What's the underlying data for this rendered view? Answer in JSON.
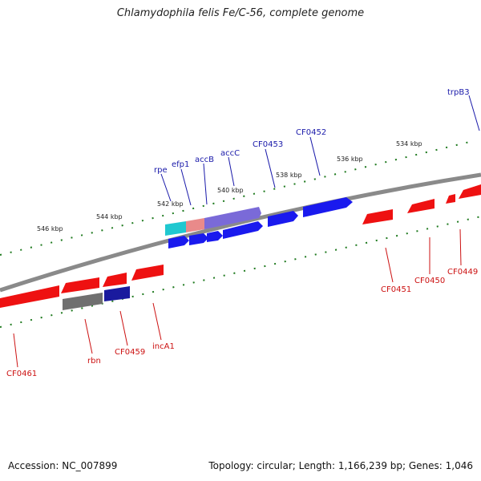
{
  "title": "Chlamydophila felis Fe/C-56, complete genome",
  "footer": {
    "accession": "Accession: NC_007899",
    "summary": "Topology: circular; Length: 1,166,239 bp; Genes: 1,046"
  },
  "colors": {
    "forward_gene": "#1a1aee",
    "reverse_gene": "#ee1111",
    "backbone": "#8a8a8a",
    "tick": "#1f7a1f",
    "forward_label": "#1a1aaa",
    "reverse_label": "#cc1111",
    "rrna": "#707070",
    "trna": "#1a1a9e"
  },
  "scale_labels": [
    "534 kbp",
    "536 kbp",
    "538 kbp",
    "540 kbp",
    "542 kbp",
    "544 kbp",
    "546 kbp"
  ],
  "forward_genes": [
    "trpB3",
    "CF0452",
    "CF0453",
    "accC",
    "accB",
    "efp1",
    "rpe"
  ],
  "reverse_genes": [
    "CF0449",
    "CF0450",
    "CF0451",
    "incA1",
    "CF0459",
    "rbn",
    "CF0461"
  ]
}
